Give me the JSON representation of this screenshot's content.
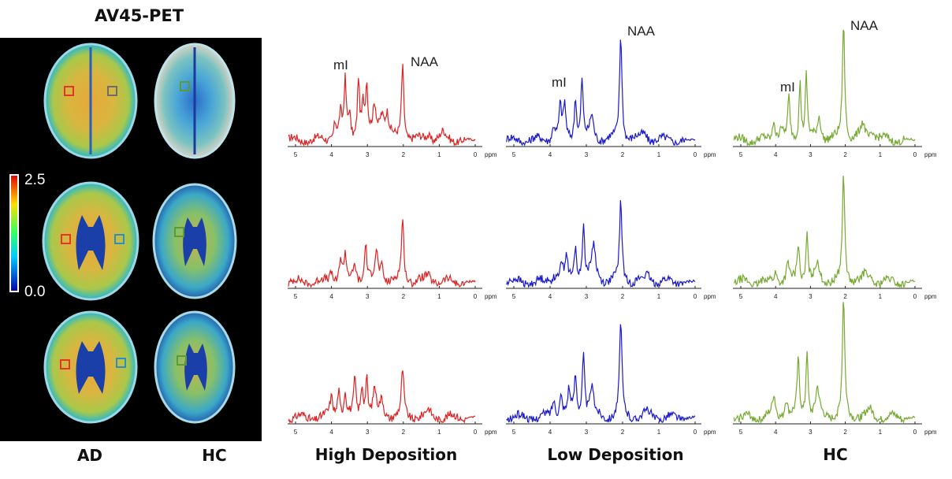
{
  "pet": {
    "title": "AV45-PET",
    "colorbar": {
      "max": "2.5",
      "min": "0.0"
    },
    "col_labels": [
      "AD",
      "HC"
    ],
    "roi_colors": {
      "ad_left": "#e8332a",
      "ad_right_top": "#6d6d6d",
      "ad_right": "#2a8ec7",
      "hc": "#5d9a3a"
    }
  },
  "spectra": {
    "columns": [
      {
        "label": "High Deposition",
        "color": "#dd2222"
      },
      {
        "label": "Low Deposition",
        "color": "#1a1acc"
      },
      {
        "label": "HC",
        "color": "#77aa33"
      }
    ],
    "axis_ticks": [
      "5",
      "4",
      "3",
      "2",
      "1",
      "0"
    ],
    "axis_unit": "ppm",
    "peak_labels": {
      "mi": "mI",
      "naa": "NAA"
    }
  }
}
